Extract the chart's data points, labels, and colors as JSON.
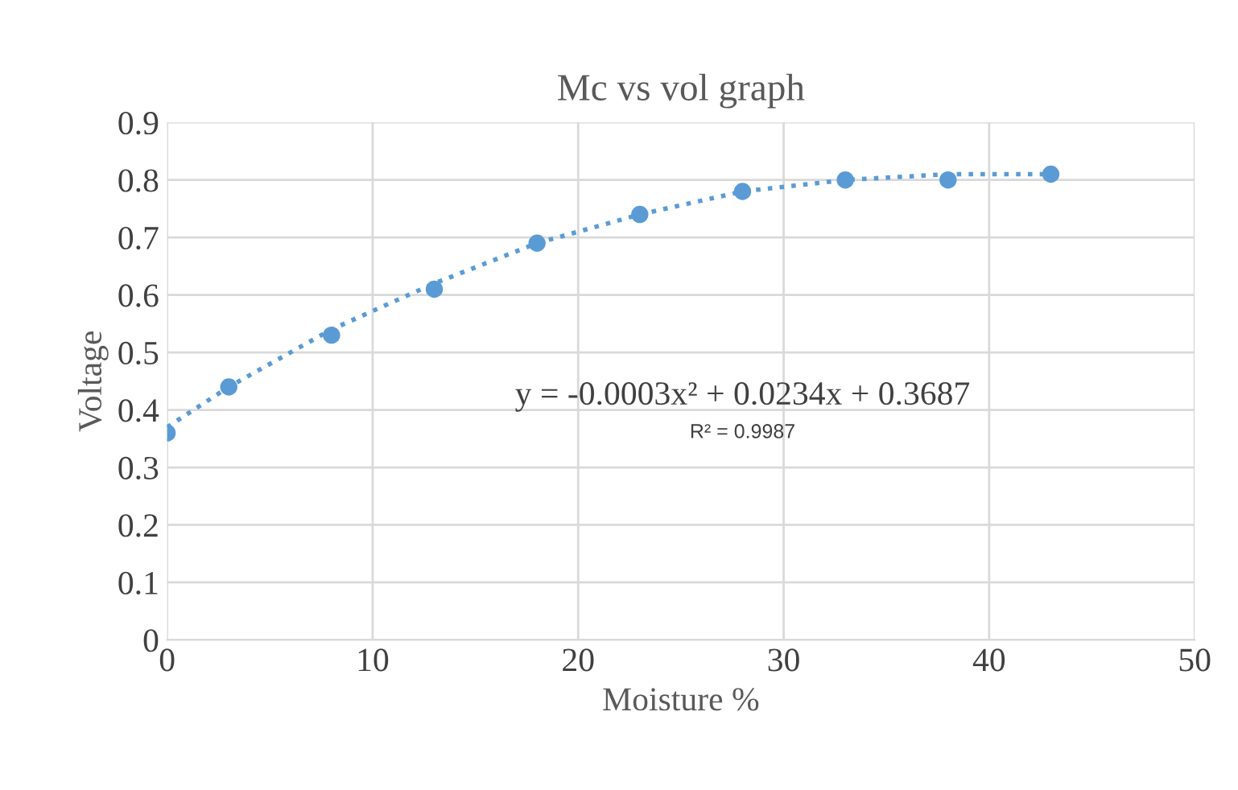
{
  "chart_data": {
    "type": "scatter",
    "title": "Mc vs vol graph",
    "xlabel": "Moisture %",
    "ylabel": "Voltage",
    "xlim": [
      0,
      50
    ],
    "xticks": [
      0,
      10,
      20,
      30,
      40,
      50
    ],
    "ylim": [
      0,
      0.9
    ],
    "yticks": [
      0,
      0.1,
      0.2,
      0.3,
      0.4,
      0.5,
      0.6,
      0.7,
      0.8,
      0.9
    ],
    "grid": true,
    "legend": false,
    "marker": "circle",
    "series": [
      {
        "color": "#5b9bd5",
        "x": [
          0,
          3,
          8,
          13,
          18,
          23,
          28,
          33,
          38,
          43
        ],
        "values": [
          0.36,
          0.44,
          0.53,
          0.61,
          0.69,
          0.74,
          0.78,
          0.8,
          0.8,
          0.81
        ]
      },
      {
        "type": "line",
        "color": "#5b9bd5",
        "marker": "none",
        "line_style": "dotted",
        "x": [
          0,
          3,
          8,
          13,
          18,
          23,
          28,
          33,
          38,
          43
        ],
        "values": [
          0.37,
          0.44,
          0.54,
          0.62,
          0.69,
          0.74,
          0.78,
          0.8,
          0.81,
          0.81
        ]
      }
    ],
    "annotations": [
      "y = -0.0003x² + 0.0234x + 0.3687",
      "R² = 0.9987"
    ]
  }
}
